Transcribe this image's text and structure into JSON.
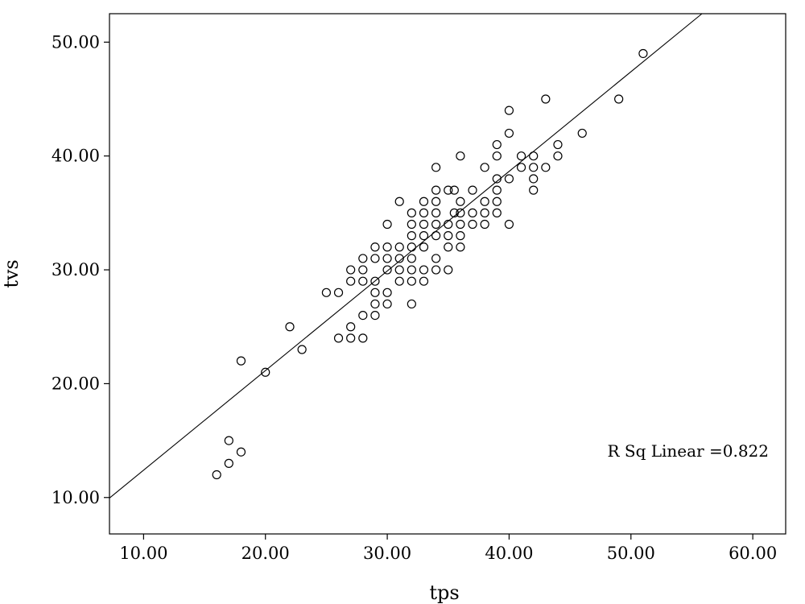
{
  "chart_data": {
    "type": "scatter",
    "xlabel": "tps",
    "ylabel": "tvs",
    "xlim": [
      7.2,
      62.7
    ],
    "ylim": [
      6.8,
      52.5
    ],
    "xticks": [
      "10.00",
      "20.00",
      "30.00",
      "40.00",
      "50.00",
      "60.00"
    ],
    "yticks": [
      "10.00",
      "20.00",
      "30.00",
      "40.00",
      "50.00"
    ],
    "grid": false,
    "annotation": "R Sq Linear =0.822",
    "fit_line": {
      "slope": 0.875,
      "intercept": 3.65
    },
    "points": [
      [
        16,
        12
      ],
      [
        17,
        13
      ],
      [
        17,
        15
      ],
      [
        18,
        14
      ],
      [
        18,
        22
      ],
      [
        20,
        21
      ],
      [
        22,
        25
      ],
      [
        23,
        23
      ],
      [
        25,
        28
      ],
      [
        26,
        24
      ],
      [
        26,
        28
      ],
      [
        27,
        24
      ],
      [
        27,
        25
      ],
      [
        27,
        29
      ],
      [
        27,
        30
      ],
      [
        28,
        24
      ],
      [
        28,
        26
      ],
      [
        28,
        29
      ],
      [
        28,
        30
      ],
      [
        28,
        31
      ],
      [
        29,
        26
      ],
      [
        29,
        27
      ],
      [
        29,
        28
      ],
      [
        29,
        29
      ],
      [
        29,
        31
      ],
      [
        29,
        32
      ],
      [
        30,
        27
      ],
      [
        30,
        28
      ],
      [
        30,
        30
      ],
      [
        30,
        31
      ],
      [
        30,
        32
      ],
      [
        30,
        34
      ],
      [
        31,
        29
      ],
      [
        31,
        30
      ],
      [
        31,
        31
      ],
      [
        31,
        32
      ],
      [
        31,
        36
      ],
      [
        32,
        27
      ],
      [
        32,
        29
      ],
      [
        32,
        30
      ],
      [
        32,
        31
      ],
      [
        32,
        32
      ],
      [
        32,
        33
      ],
      [
        32,
        34
      ],
      [
        32,
        35
      ],
      [
        33,
        29
      ],
      [
        33,
        30
      ],
      [
        33,
        32
      ],
      [
        33,
        33
      ],
      [
        33,
        34
      ],
      [
        33,
        35
      ],
      [
        33,
        36
      ],
      [
        34,
        30
      ],
      [
        34,
        31
      ],
      [
        34,
        33
      ],
      [
        34,
        34
      ],
      [
        34,
        35
      ],
      [
        34,
        36
      ],
      [
        34,
        37
      ],
      [
        34,
        39
      ],
      [
        35,
        30
      ],
      [
        35,
        32
      ],
      [
        35,
        33
      ],
      [
        35,
        34
      ],
      [
        35,
        37
      ],
      [
        35.5,
        35
      ],
      [
        35.5,
        37
      ],
      [
        36,
        32
      ],
      [
        36,
        33
      ],
      [
        36,
        34
      ],
      [
        36,
        35
      ],
      [
        36,
        36
      ],
      [
        36,
        40
      ],
      [
        37,
        34
      ],
      [
        37,
        35
      ],
      [
        37,
        37
      ],
      [
        38,
        34
      ],
      [
        38,
        35
      ],
      [
        38,
        36
      ],
      [
        38,
        39
      ],
      [
        39,
        35
      ],
      [
        39,
        36
      ],
      [
        39,
        37
      ],
      [
        39,
        38
      ],
      [
        39,
        40
      ],
      [
        39,
        41
      ],
      [
        40,
        34
      ],
      [
        40,
        38
      ],
      [
        40,
        42
      ],
      [
        40,
        44
      ],
      [
        41,
        39
      ],
      [
        41,
        40
      ],
      [
        42,
        37
      ],
      [
        42,
        38
      ],
      [
        42,
        39
      ],
      [
        42,
        40
      ],
      [
        43,
        39
      ],
      [
        43,
        45
      ],
      [
        44,
        40
      ],
      [
        44,
        41
      ],
      [
        46,
        42
      ],
      [
        49,
        45
      ],
      [
        51,
        49
      ]
    ]
  }
}
